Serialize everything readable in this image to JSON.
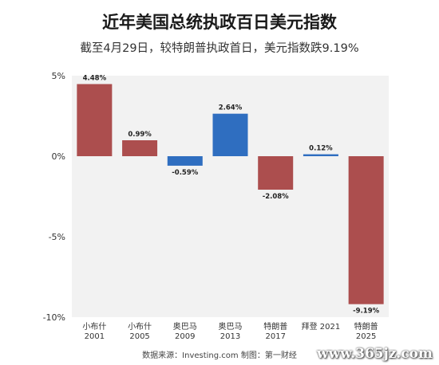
{
  "title": "近年美国总统执政百日美元指数",
  "subtitle": "截至4月29日，较特朗普执政首日，美元指数跌9.19%",
  "source": "数据来源：Investing.com    制图：第一财经",
  "watermark": "www.365jz.com",
  "colors": {
    "negative_bar": "#ac4e4e",
    "positive_bar": "#2f6ec0",
    "plot_background": "#f2f2f2"
  },
  "chart_data": {
    "type": "bar",
    "title": "近年美国总统执政百日美元指数",
    "subtitle": "截至4月29日，较特朗普执政首日，美元指数跌9.19%",
    "categories": [
      [
        "小布什",
        "2001"
      ],
      [
        "小布什",
        "2005"
      ],
      [
        "奥巴马",
        "2009"
      ],
      [
        "奥巴马",
        "2013"
      ],
      [
        "特朗普",
        "2017"
      ],
      [
        "拜登 2021"
      ],
      [
        "特朗普",
        "2025"
      ]
    ],
    "values": [
      4.48,
      0.99,
      -0.59,
      2.64,
      -2.08,
      0.12,
      -9.19
    ],
    "value_labels": [
      "4.48%",
      "0.99%",
      "-0.59%",
      "2.64%",
      "-2.08%",
      "0.12%",
      "-9.19%"
    ],
    "bar_colors": [
      "#ac4e4e",
      "#ac4e4e",
      "#2f6ec0",
      "#2f6ec0",
      "#ac4e4e",
      "#2f6ec0",
      "#ac4e4e"
    ],
    "ylim": [
      -10,
      5
    ],
    "yticks": [
      5,
      0,
      -5,
      -10
    ],
    "ytick_labels": [
      "5%",
      "0%",
      "-5%",
      "-10%"
    ],
    "xlabel": "",
    "ylabel": "",
    "grid": false,
    "legend": "none"
  }
}
